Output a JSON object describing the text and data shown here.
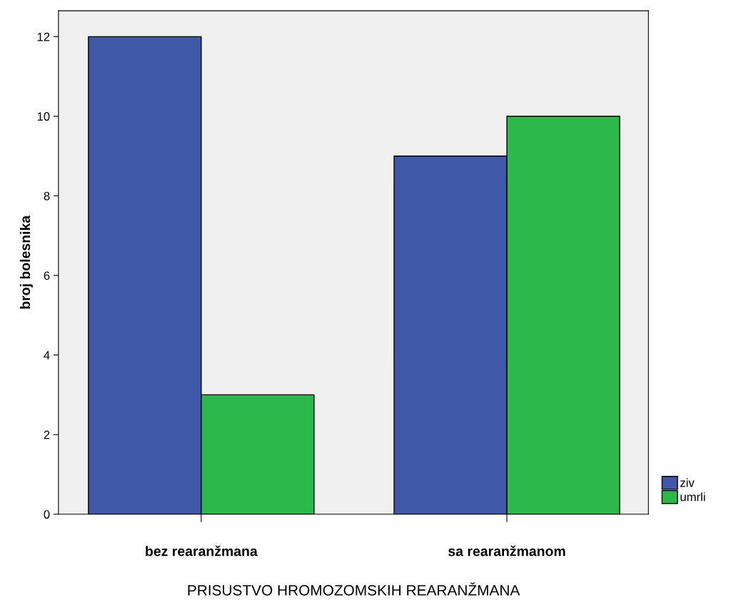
{
  "chart_data": {
    "type": "bar",
    "xlabel": "PRISUSTVO HROMOZOMSKIH REARANŽMANA",
    "ylabel": "broj bolesnika",
    "categories": [
      "bez rearanžmana",
      "sa rearanžmanom"
    ],
    "series": [
      {
        "name": "ziv",
        "color": "#3f58a8",
        "values": [
          12,
          9
        ]
      },
      {
        "name": "umrli",
        "color": "#2db84b",
        "values": [
          3,
          10
        ]
      }
    ],
    "ylim": [
      0,
      12.65
    ],
    "yticks": [
      0,
      2,
      4,
      6,
      8,
      10,
      12
    ],
    "grid": false,
    "legend": "bottom right"
  }
}
